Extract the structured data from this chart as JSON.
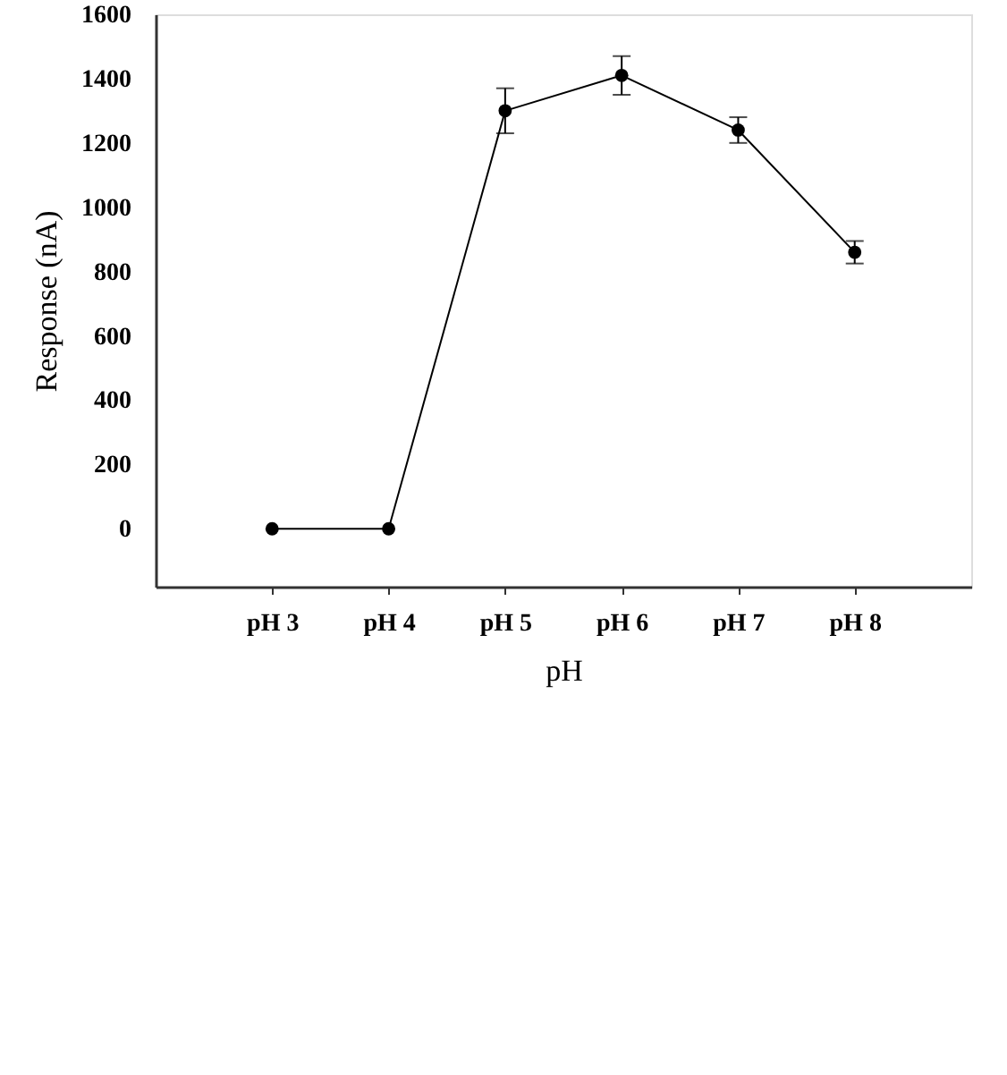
{
  "chart_data": {
    "type": "line",
    "xlabel": "pH",
    "ylabel": "Response (nA)",
    "categories": [
      "pH 3",
      "pH 4",
      "pH 5",
      "pH 6",
      "pH 7",
      "pH 8"
    ],
    "values": [
      0,
      0,
      1300,
      1410,
      1240,
      860
    ],
    "errors": [
      null,
      null,
      70,
      60,
      40,
      35
    ],
    "color": "#000000",
    "marker": "circle",
    "line_style": "solid",
    "ylim": [
      -180,
      1600
    ],
    "yticks": [
      0,
      200,
      400,
      600,
      800,
      1000,
      1200,
      1400,
      1600
    ]
  }
}
